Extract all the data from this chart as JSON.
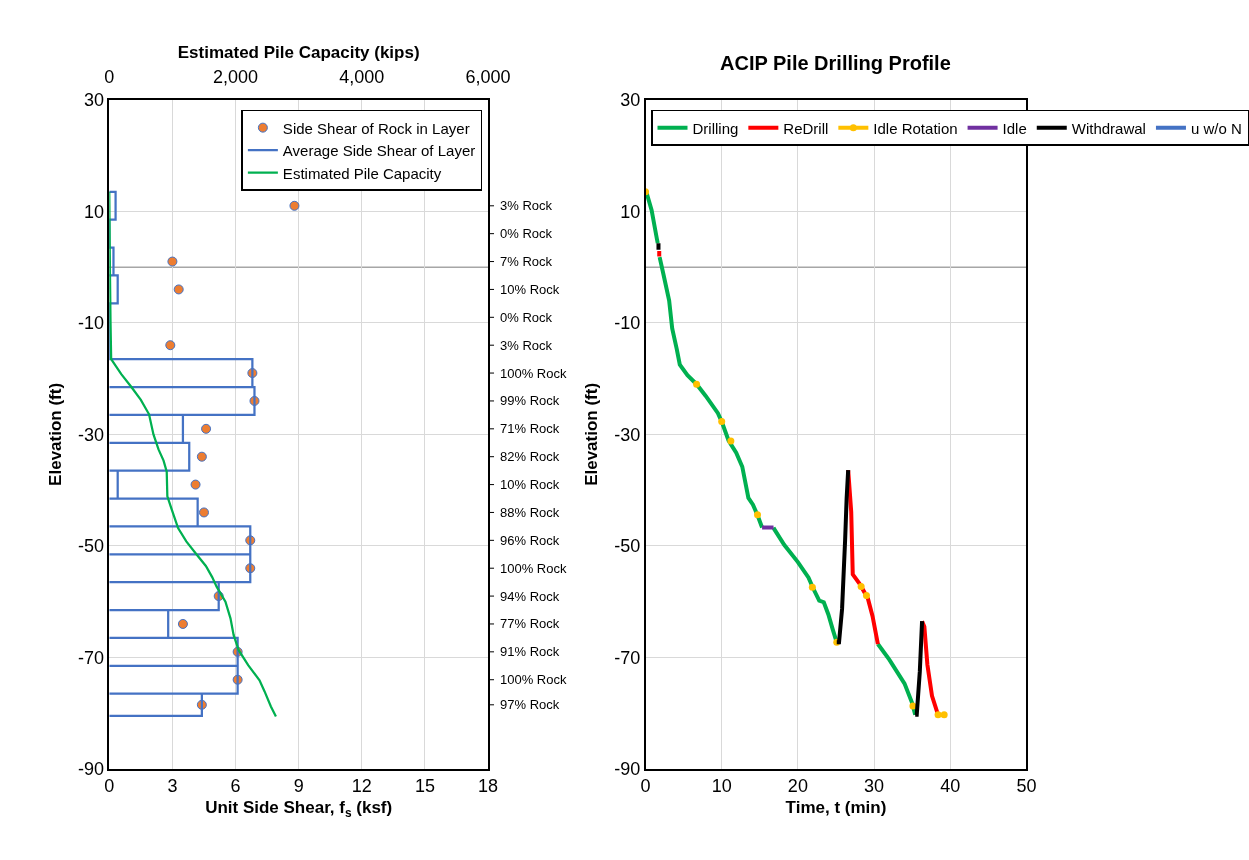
{
  "chart_data": [
    {
      "type": "line",
      "xlabel": "Unit Side Shear, f$_{s}$ (ksf)",
      "ylabel": "Elevation (ft)",
      "x2label": "Estimated Pile Capacity (kips)",
      "xlim": [
        0,
        18
      ],
      "xticks": [
        0,
        3,
        6,
        9,
        12,
        15,
        18
      ],
      "ylim": [
        -90,
        30
      ],
      "yticks": [
        -90,
        -70,
        -50,
        -30,
        -10,
        10,
        30
      ],
      "x2lim": [
        0,
        6000
      ],
      "x2ticks": [
        0,
        {
          "value": 2000,
          "label": "2,000"
        },
        {
          "value": 4000,
          "label": "4,000"
        },
        {
          "value": 6000,
          "label": "6,000"
        }
      ],
      "annotations": [
        "3% Rock",
        "0% Rock",
        "7% Rock",
        "10% Rock",
        "0% Rock",
        "3% Rock",
        "100% Rock",
        "99% Rock",
        "71% Rock",
        "82% Rock",
        "10% Rock",
        "88% Rock",
        "96% Rock",
        "100% Rock",
        "94% Rock",
        "77% Rock",
        "91% Rock",
        "100% Rock",
        "97% Rock"
      ],
      "grid": true,
      "legend": "top right",
      "ref_lines": [
        {
          "axis": "y",
          "value": 0,
          "color": "#a6a6a6"
        }
      ],
      "series": [
        {
          "name": "Side Shear of Rock in Layer",
          "type": "scatter",
          "marker": "circle",
          "color": "#ed7d31",
          "x": [
            8.8,
            3.0,
            3.3,
            2.9,
            6.8,
            6.9,
            4.6,
            4.4,
            4.1,
            4.5,
            6.7,
            6.7,
            5.2,
            3.5,
            6.1,
            6.1,
            4.4
          ],
          "values": [
            11,
            1,
            -4,
            -14,
            -19,
            -24,
            -29,
            -34,
            -39,
            -44,
            -49,
            -54,
            -59,
            -64,
            -69,
            -74,
            -78.5
          ]
        },
        {
          "name": "Average Side Shear of Layer",
          "type": "line",
          "marker": "none",
          "color": "#4472c4",
          "x": [
            0,
            0.3,
            0.3,
            0,
            0,
            0.2,
            0.2,
            0,
            0.4,
            0.4,
            0,
            0,
            0,
            6.8,
            6.8,
            0,
            6.9,
            6.9,
            0,
            3.5,
            3.5,
            0,
            3.8,
            3.8,
            0,
            0.4,
            0.4,
            0,
            4.2,
            4.2,
            0,
            6.7,
            6.7,
            0,
            6.7,
            6.7,
            0,
            5.2,
            5.2,
            0,
            2.8,
            2.8,
            0,
            6.1,
            6.1,
            0,
            6.1,
            6.1,
            0,
            4.4,
            4.4,
            0
          ],
          "values": [
            13.5,
            13.5,
            8.5,
            8.5,
            3.5,
            3.5,
            -1.5,
            -1.5,
            -1.5,
            -6.5,
            -6.5,
            -11.5,
            -16.5,
            -16.5,
            -21.5,
            -21.5,
            -21.5,
            -26.5,
            -26.5,
            -26.5,
            -31.5,
            -31.5,
            -31.5,
            -36.5,
            -36.5,
            -36.5,
            -41.5,
            -41.5,
            -41.5,
            -46.5,
            -46.5,
            -46.5,
            -51.5,
            -51.5,
            -51.5,
            -56.5,
            -56.5,
            -56.5,
            -61.5,
            -61.5,
            -61.5,
            -66.5,
            -66.5,
            -66.5,
            -71.5,
            -71.5,
            -71.5,
            -76.5,
            -76.5,
            -76.5,
            -80.5,
            -80.5
          ]
        },
        {
          "name": "Estimated Pile Capacity",
          "type": "line",
          "marker": "none",
          "axis": "x2",
          "color": "#00b050",
          "x": [
            0,
            10,
            20,
            30,
            190,
            350,
            500,
            630,
            700,
            780,
            860,
            910,
            920,
            990,
            1090,
            1220,
            1380,
            1530,
            1630,
            1700,
            1840,
            1920,
            1970,
            2050,
            2200,
            2380,
            2460,
            2560,
            2640
          ],
          "values": [
            13.5,
            0,
            -10,
            -16.5,
            -19.2,
            -21.5,
            -23.8,
            -26.4,
            -30,
            -32.7,
            -34.7,
            -36.7,
            -41.1,
            -43.5,
            -46.8,
            -49.2,
            -51.5,
            -53.6,
            -55.6,
            -57.3,
            -60,
            -63,
            -66,
            -68.7,
            -71.4,
            -74.1,
            -76.1,
            -78.8,
            -80.6
          ]
        }
      ]
    },
    {
      "type": "line",
      "title": "ACIP Pile Drilling Profile",
      "xlabel": "Time, t (min)",
      "ylabel": "Elevation (ft)",
      "xlim": [
        0,
        50
      ],
      "xticks": [
        0,
        10,
        20,
        30,
        40,
        50
      ],
      "ylim": [
        -90,
        30
      ],
      "yticks": [
        -90,
        -70,
        -50,
        -30,
        -10,
        10,
        30
      ],
      "grid": true,
      "legend": "top",
      "ref_lines": [
        {
          "axis": "y",
          "value": 0,
          "color": "#a6a6a6"
        }
      ],
      "series": [
        {
          "name": "Drilling",
          "color": "#00b050",
          "x": [
            0.1,
            0.8,
            1.5,
            1.6,
            null,
            1.85,
            2.4,
            3.1,
            3.5,
            4.1,
            4.5,
            5.5,
            6.7,
            7.9,
            9.5,
            10.0,
            10.9,
            11.9,
            12.7,
            13.5,
            14.1,
            14.7,
            15.3,
            null,
            16.8,
            16.9,
            18.2,
            20.0,
            21.4,
            22.0,
            22.8,
            23.4,
            24.0,
            24.6,
            25.1,
            null,
            30.5,
            32.0,
            34.0,
            35.0,
            35.4
          ],
          "values": [
            13.5,
            10.2,
            5.0,
            4.3,
            null,
            1.8,
            -1.6,
            -6.0,
            -11.0,
            -14.7,
            -17.5,
            -19.4,
            -21.0,
            -23.1,
            -26.2,
            -27.7,
            -31.1,
            -33.3,
            -35.8,
            -41.4,
            -42.6,
            -44.5,
            -46.7,
            null,
            -46.7,
            -47.0,
            -49.8,
            -52.9,
            -55.7,
            -57.6,
            -59.8,
            -60.1,
            -62.3,
            -65.1,
            -67.3,
            null,
            -67.6,
            -70.4,
            -74.7,
            -78.2,
            -80.3
          ]
        },
        {
          "name": "ReDrill",
          "color": "#ff0000",
          "x": [
            1.8,
            1.8,
            null,
            26.6,
            27.0,
            27.2,
            28.2,
            29.2,
            29.8,
            30.5,
            null,
            36.3,
            36.6,
            37.0,
            37.6,
            38.4
          ],
          "values": [
            2.9,
            1.9,
            null,
            -36.4,
            -43.9,
            -55.1,
            -57.0,
            -59.5,
            -62.6,
            -67.6,
            null,
            -63.5,
            -64.5,
            -71.3,
            -76.9,
            -80.3
          ]
        },
        {
          "name": "Idle Rotation",
          "color": "#ffc000",
          "marker": "circle",
          "x": [
            0,
            null,
            6.7,
            null,
            10.0,
            null,
            11.2,
            null,
            14.7,
            null,
            21.9,
            null,
            25.1,
            null,
            28.3,
            null,
            29.0,
            null,
            35.1,
            null,
            38.4,
            39.2
          ],
          "values": [
            13.5,
            null,
            -21.0,
            null,
            -27.7,
            null,
            -31.2,
            null,
            -44.4,
            null,
            -57.4,
            null,
            -67.3,
            null,
            -57.3,
            null,
            -58.9,
            null,
            -78.7,
            null,
            -80.3,
            -80.3
          ]
        },
        {
          "name": "Idle",
          "color": "#7030a0",
          "x": [
            15.3,
            16.8
          ],
          "values": [
            -46.7,
            -46.7
          ]
        },
        {
          "name": "Withdrawal",
          "color": "#000000",
          "x": [
            1.7,
            1.7,
            null,
            25.1,
            25.4,
            25.8,
            26.2,
            26.4,
            26.6,
            null,
            35.4,
            35.6,
            36.0,
            36.3
          ],
          "values": [
            4.3,
            3.1,
            null,
            -67.3,
            -67.3,
            -61.3,
            -48.9,
            -41.4,
            -36.4,
            null,
            -80.3,
            -80.3,
            -72.6,
            -63.5
          ]
        },
        {
          "name": "u w/o N",
          "color": "#4472c4"
        }
      ]
    }
  ]
}
